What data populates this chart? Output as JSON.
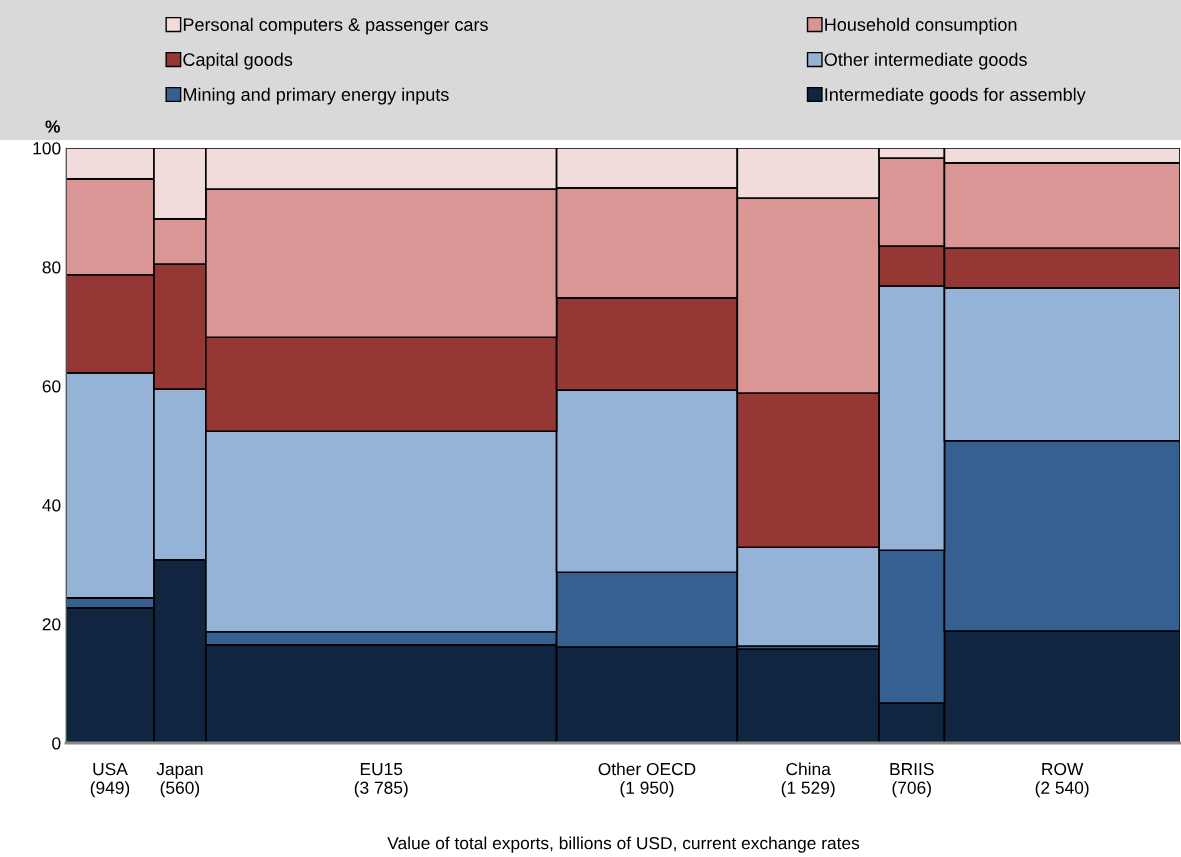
{
  "chart_data": {
    "type": "bar",
    "stacked": true,
    "xlabel": "Value of total exports, billions of USD, current exchange rates",
    "ylabel": "%",
    "categories": [
      "USA\n(949)",
      "Japan\n(560)",
      "EU15\n(3 785)",
      "Other OECD\n(1 950)",
      "China\n(1 529)",
      "BRIIS\n(706)",
      "ROW\n(2 540)"
    ],
    "series": [
      {
        "name": "Intermediate goods for assembly",
        "color": "#10253f",
        "values": [
          22.7,
          30.8,
          16.5,
          16.1,
          15.8,
          6.7,
          18.8
        ]
      },
      {
        "name": "Mining and primary energy inputs",
        "color": "#376092",
        "values": [
          1.7,
          0,
          2.2,
          12.6,
          0.5,
          25.7,
          32.0
        ]
      },
      {
        "name": "Other intermediate goods",
        "color": "#95b3d7",
        "values": [
          37.8,
          28.7,
          33.7,
          30.6,
          16.6,
          44.4,
          25.7
        ]
      },
      {
        "name": "Capital goods",
        "color": "#953735",
        "values": [
          16.5,
          21.0,
          15.8,
          15.5,
          25.9,
          6.7,
          6.7
        ]
      },
      {
        "name": "Household consumption",
        "color": "#d99694",
        "values": [
          16.1,
          7.6,
          24.9,
          18.5,
          32.8,
          14.8,
          14.3
        ]
      },
      {
        "name": "Personal computers & passenger cars",
        "color": "#f2dcdb",
        "values": [
          5.2,
          11.9,
          6.9,
          6.7,
          8.4,
          1.7,
          2.5
        ]
      }
    ],
    "ylim": [
      0,
      100
    ],
    "yticks": [
      0,
      20,
      40,
      60,
      80,
      100
    ],
    "grid": false,
    "legend": "top"
  }
}
